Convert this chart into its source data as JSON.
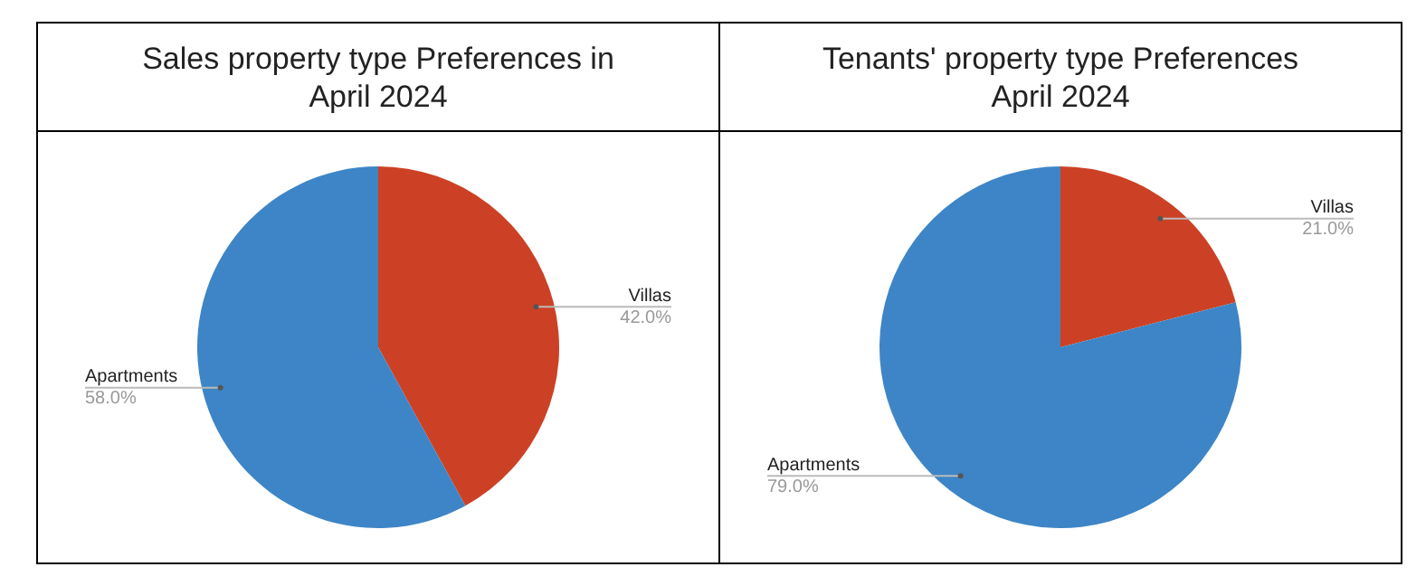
{
  "chart_data": [
    {
      "type": "pie",
      "title": "Sales property type Preferences in April 2024",
      "categories": [
        "Villas",
        "Apartments"
      ],
      "values": [
        42,
        58
      ],
      "colors": [
        "#cc4125",
        "#3d85c6"
      ],
      "value_labels": [
        "42.0%",
        "58.0%"
      ]
    },
    {
      "type": "pie",
      "title": "Tenants' property type Preferences April 2024",
      "categories": [
        "Villas",
        "Apartments"
      ],
      "values": [
        21,
        79
      ],
      "colors": [
        "#cc4125",
        "#3d85c6"
      ],
      "value_labels": [
        "21.0%",
        "79.0%"
      ]
    }
  ]
}
